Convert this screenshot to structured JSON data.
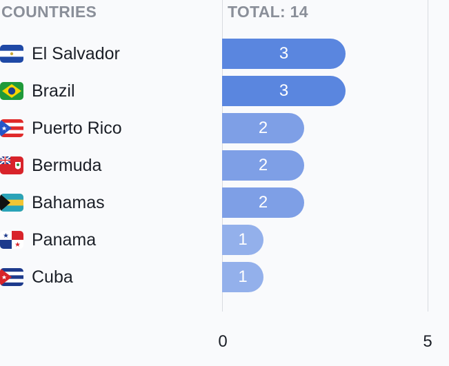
{
  "header": {
    "countries_label": "COUNTRIES",
    "total_label": "TOTAL: 14"
  },
  "colors": {
    "bar_high": "#5a86df",
    "bar_mid": "#7e9fe6",
    "bar_low": "#93b0eb"
  },
  "chart_data": {
    "type": "bar",
    "orientation": "horizontal",
    "categories": [
      "El Salvador",
      "Brazil",
      "Puerto Rico",
      "Bermuda",
      "Bahamas",
      "Panama",
      "Cuba"
    ],
    "values": [
      3,
      3,
      2,
      2,
      2,
      1,
      1
    ],
    "flag_icons": [
      "el-salvador-flag-icon",
      "brazil-flag-icon",
      "puerto-rico-flag-icon",
      "bermuda-flag-icon",
      "bahamas-flag-icon",
      "panama-flag-icon",
      "cuba-flag-icon"
    ],
    "xlim": [
      0,
      5
    ],
    "x_ticks": [
      "0",
      "5"
    ],
    "title": "",
    "xlabel": "",
    "ylabel": ""
  }
}
